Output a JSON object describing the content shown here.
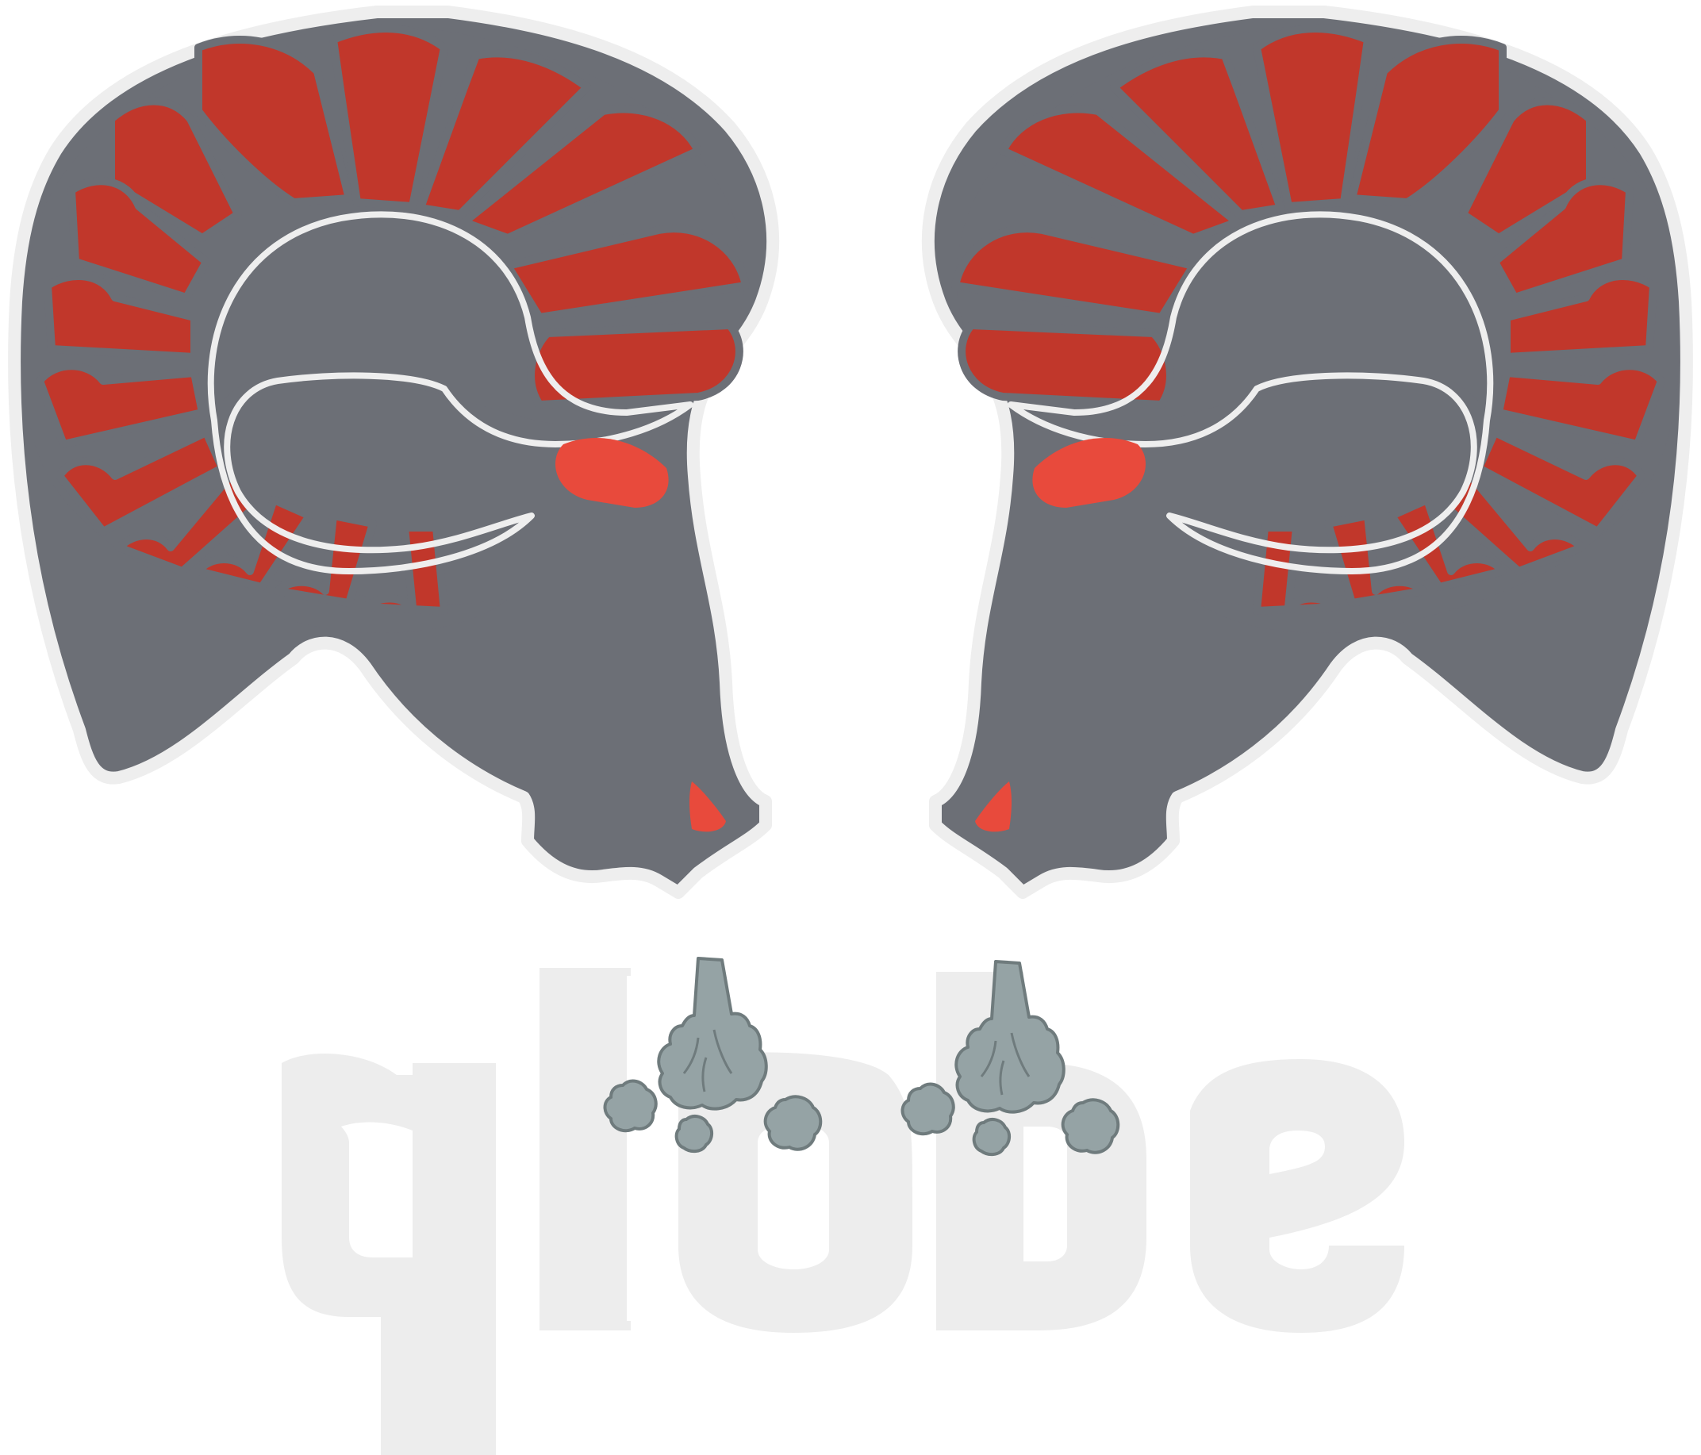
{
  "logo": {
    "word": "qlobe",
    "colors": {
      "background": "#ffffff",
      "head": "#6c6f76",
      "outline": "#eeeeee",
      "horn": "#c1372b",
      "accent": "#e84a3c",
      "steam": "#95a3a5",
      "steam_stroke": "#6f7b7d",
      "word": "#ededed"
    }
  }
}
